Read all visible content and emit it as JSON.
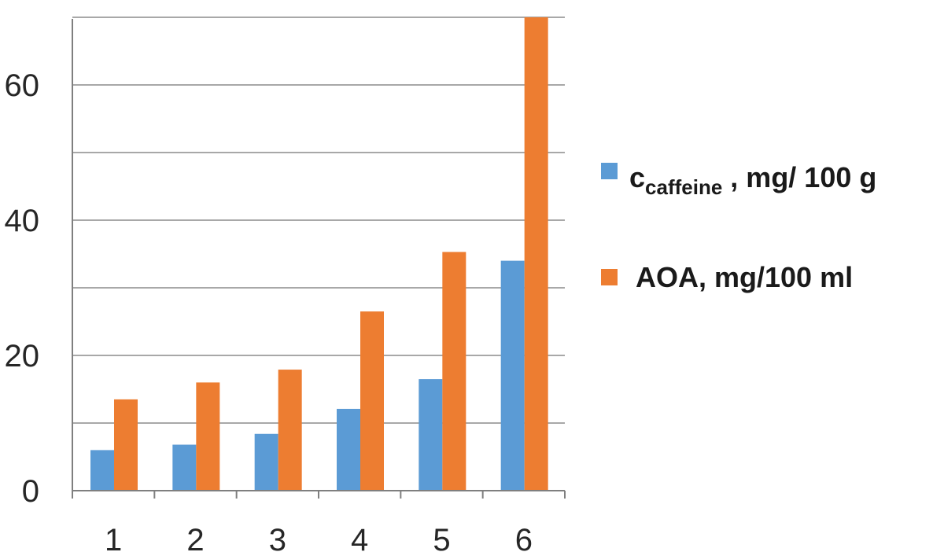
{
  "chart_data": {
    "type": "bar",
    "title": "",
    "xlabel": "",
    "ylabel": "",
    "categories": [
      "1",
      "2",
      "3",
      "4",
      "5",
      "6"
    ],
    "ylim": [
      0,
      70
    ],
    "y_ticks": [
      "0",
      "20",
      "40",
      "60"
    ],
    "y_tick_values": [
      0,
      20,
      40,
      60
    ],
    "y_gridlines": [
      10,
      20,
      30,
      40,
      50,
      60,
      70
    ],
    "grid": true,
    "legend_position": "right",
    "series": [
      {
        "name": "c caffeine , mg/ 100 g",
        "label_main": "c",
        "label_sub": "caffeine",
        "label_rest": " , mg/ 100 g",
        "color": "#5b9bd5",
        "values": [
          6,
          6.8,
          8.4,
          12.1,
          16.5,
          34
        ]
      },
      {
        "name": "AOA, mg/100 ml",
        "label_main": "AOA, mg/100 ml",
        "color": "#ed7d31",
        "values": [
          13.5,
          16,
          17.9,
          26.5,
          35.3,
          70
        ]
      }
    ]
  }
}
